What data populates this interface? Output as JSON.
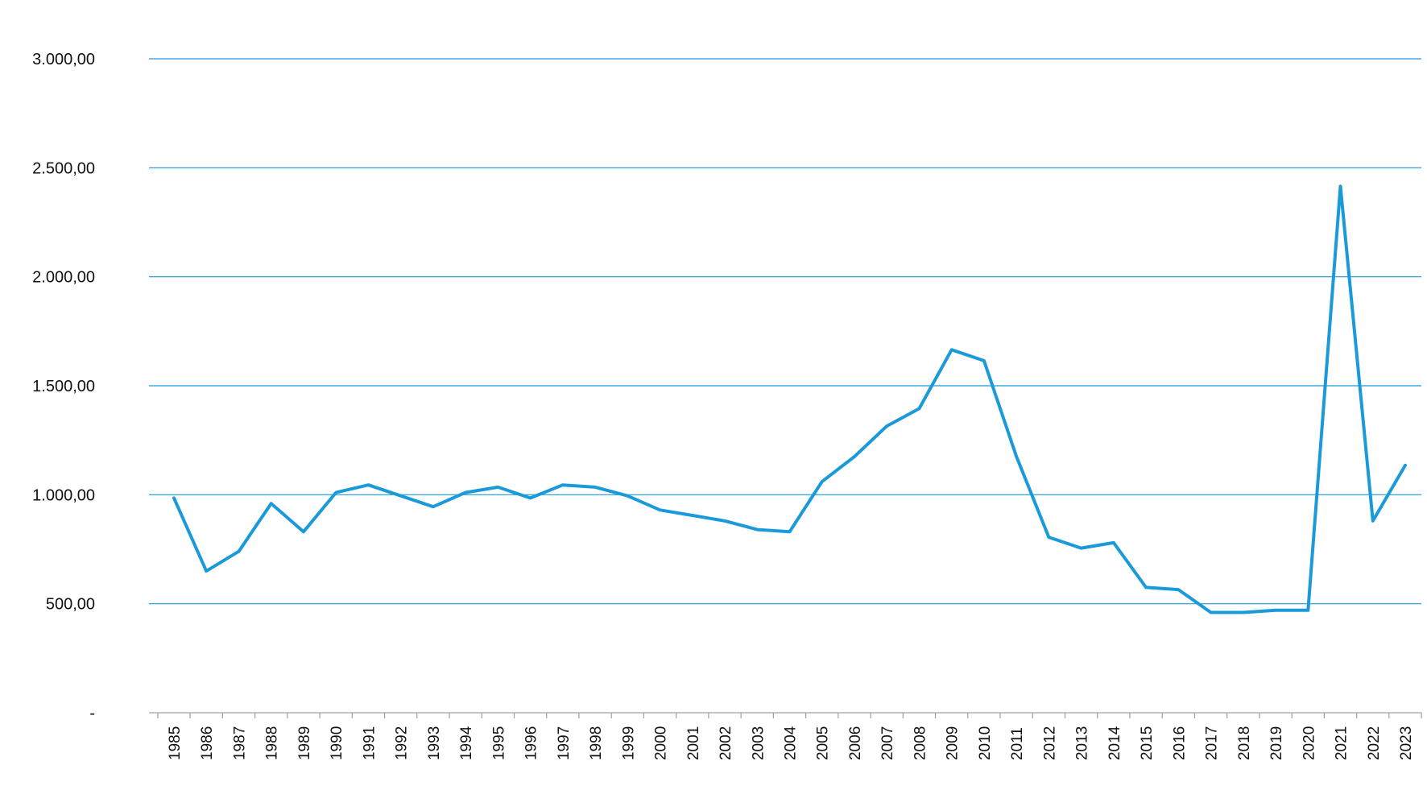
{
  "chart_data": {
    "type": "line",
    "title": "",
    "xlabel": "",
    "ylabel": "",
    "ylim": [
      0,
      3000
    ],
    "yticks": [
      0,
      500,
      1000,
      1500,
      2000,
      2500,
      3000
    ],
    "ytick_labels": [
      "-",
      "500,00",
      "1.000,00",
      "1.500,00",
      "2.000,00",
      "2.500,00",
      "3.000,00"
    ],
    "grid": true,
    "legend": "none",
    "colors": {
      "line": "#1a9ad9",
      "grid": "#1a9ad9",
      "axis": "#a0a0a0"
    },
    "categories": [
      "1985",
      "1986",
      "1987",
      "1988",
      "1989",
      "1990",
      "1991",
      "1992",
      "1993",
      "1994",
      "1995",
      "1996",
      "1997",
      "1998",
      "1999",
      "2000",
      "2001",
      "2002",
      "2003",
      "2004",
      "2005",
      "2006",
      "2007",
      "2008",
      "2009",
      "2010",
      "2011",
      "2012",
      "2013",
      "2014",
      "2015",
      "2016",
      "2017",
      "2018",
      "2019",
      "2020",
      "2021",
      "2022",
      "2023"
    ],
    "series": [
      {
        "values": [
          985,
          650,
          740,
          960,
          830,
          1010,
          1045,
          995,
          945,
          1010,
          1035,
          985,
          1045,
          1035,
          995,
          930,
          905,
          880,
          840,
          830,
          1060,
          1175,
          1315,
          1395,
          1665,
          1615,
          1175,
          805,
          755,
          780,
          575,
          565,
          460,
          460,
          470,
          470,
          2415,
          880,
          1135
        ]
      }
    ]
  }
}
